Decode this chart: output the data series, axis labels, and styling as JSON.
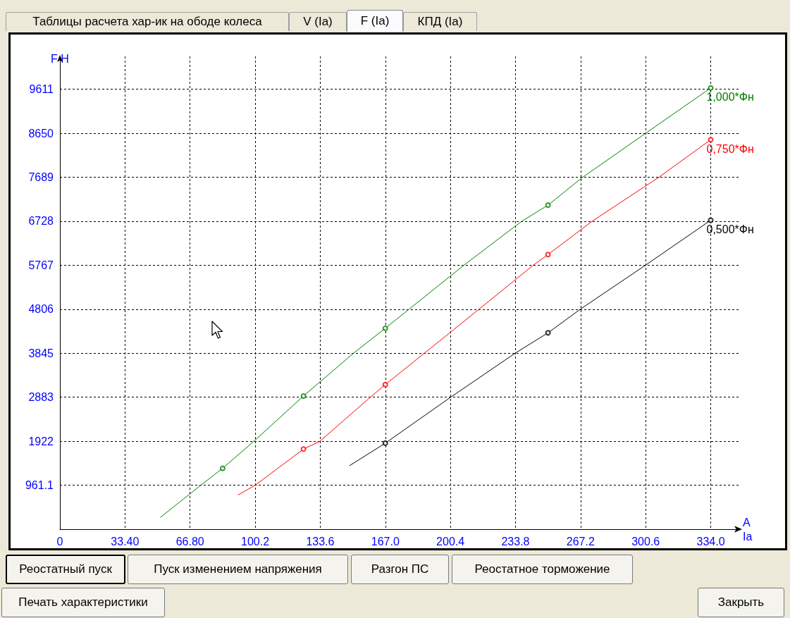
{
  "chart_data": {
    "type": "line",
    "xlabel": "А\nIa",
    "ylabel": "F Н",
    "annotations": [
      "Таблицы расчета хар-ик на ободе колеса",
      "V (Ia)",
      "F (Ia)",
      "КПД (Ia)",
      "Реостатный пуск",
      "Пуск изменением напряжения",
      "Разгон ПС",
      "Реостатное торможение",
      "Печать характеристики",
      "Закрыть"
    ],
    "xlim": [
      0,
      349
    ],
    "ylim": [
      0,
      10330
    ],
    "xticks": [
      0,
      {
        "value": 33.4,
        "label": "33.40"
      },
      {
        "value": 66.8,
        "label": "66.80"
      },
      100.2,
      133.6,
      {
        "value": 167,
        "label": "167.0"
      },
      200.4,
      233.8,
      267.2,
      300.6,
      {
        "value": 334,
        "label": "334.0"
      }
    ],
    "yticks": [
      961.1,
      1922,
      2883,
      3845,
      4806,
      5767,
      6728,
      7689,
      8650,
      9611
    ],
    "grid": true,
    "series": [
      {
        "name": "1,000*Фн",
        "color": "#008000",
        "marker": "none",
        "x": [
          51.6,
          72.3,
          83.5,
          99.5,
          125,
          150.8,
          167,
          207.4,
          237.1,
          250.5,
          268.3,
          300.6,
          334
        ],
        "values": [
          260,
          960,
          1330,
          1920,
          2910,
          3850,
          4390,
          5770,
          6730,
          7080,
          7690,
          8650,
          9640
        ]
      },
      {
        "type": "scatter",
        "color": "#008000",
        "marker": "circle",
        "x": [
          83.5,
          125,
          167,
          250.5,
          334
        ],
        "values": [
          1330,
          2910,
          4390,
          7080,
          9640
        ]
      },
      {
        "name": "0,750*Фн",
        "color": "#ff0000",
        "marker": "none",
        "x": [
          91.5,
          100.2,
          125,
          133.4,
          159.2,
          167,
          187.2,
          215.2,
          243,
          250.5,
          273.2,
          307.4,
          334
        ],
        "values": [
          750,
          960,
          1750,
          1920,
          2880,
          3160,
          3850,
          4810,
          5770,
          6000,
          6730,
          7690,
          8510
        ]
      },
      {
        "type": "scatter",
        "color": "#ff0000",
        "marker": "circle",
        "x": [
          125,
          167,
          250.5,
          334
        ],
        "values": [
          1750,
          3160,
          6000,
          8510
        ]
      },
      {
        "name": "0,500*Фн",
        "color": "#000000",
        "marker": "none",
        "x": [
          148.7,
          167,
          200.4,
          233.8,
          250.5,
          267.2,
          300.6,
          334
        ],
        "values": [
          1390,
          1880,
          2880,
          3850,
          4290,
          4810,
          5770,
          6750
        ]
      },
      {
        "type": "scatter",
        "color": "#000000",
        "marker": "circle",
        "x": [
          167,
          250.5,
          334
        ],
        "values": [
          1880,
          4290,
          6750
        ]
      }
    ]
  }
}
